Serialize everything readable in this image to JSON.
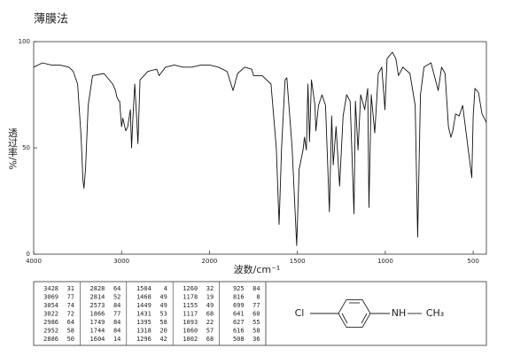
{
  "chart_data": {
    "type": "line",
    "title": "薄膜法",
    "ylabel": "透过率/%",
    "xlabel": "波数/cm⁻¹",
    "xlim": [
      4000,
      425
    ],
    "xscale_break": 2000,
    "xscale_ratio": 2,
    "xticks": [
      4000,
      3000,
      2000,
      1500,
      1000,
      500
    ],
    "ylim": [
      0,
      100
    ],
    "yticks": [
      0,
      50,
      100
    ],
    "x": [
      4000,
      3900,
      3800,
      3700,
      3600,
      3550,
      3500,
      3460,
      3440,
      3428,
      3410,
      3380,
      3330,
      3200,
      3100,
      3069,
      3054,
      3030,
      3022,
      3000,
      2986,
      2952,
      2930,
      2900,
      2886,
      2870,
      2850,
      2828,
      2814,
      2790,
      2700,
      2600,
      2573,
      2500,
      2400,
      2300,
      2200,
      2100,
      2000,
      1950,
      1900,
      1866,
      1840,
      1800,
      1760,
      1749,
      1700,
      1650,
      1620,
      1604,
      1590,
      1570,
      1560,
      1530,
      1504,
      1490,
      1468,
      1460,
      1449,
      1440,
      1431,
      1420,
      1400,
      1395,
      1380,
      1360,
      1340,
      1318,
      1305,
      1296,
      1280,
      1260,
      1240,
      1220,
      1200,
      1178,
      1170,
      1155,
      1140,
      1117,
      1100,
      1093,
      1080,
      1060,
      1040,
      1020,
      1002,
      990,
      960,
      940,
      925,
      900,
      860,
      830,
      816,
      800,
      780,
      740,
      699,
      680,
      660,
      641,
      627,
      616,
      600,
      580,
      560,
      508,
      500,
      490,
      470,
      450,
      425
    ],
    "series": [
      {
        "name": "spectrum",
        "color": "#111111",
        "values": [
          88,
          90,
          89,
          89,
          88,
          86,
          80,
          55,
          35,
          31,
          40,
          70,
          84,
          85,
          80,
          77,
          74,
          72,
          72,
          60,
          64,
          58,
          60,
          68,
          50,
          65,
          80,
          64,
          52,
          82,
          86,
          87,
          84,
          88,
          89,
          88,
          88,
          89,
          89,
          88,
          86,
          77,
          85,
          88,
          87,
          84,
          84,
          80,
          50,
          14,
          50,
          82,
          83,
          50,
          4,
          40,
          49,
          55,
          49,
          80,
          53,
          82,
          70,
          58,
          70,
          75,
          70,
          20,
          65,
          42,
          60,
          32,
          65,
          75,
          72,
          19,
          72,
          49,
          75,
          68,
          78,
          22,
          75,
          57,
          85,
          88,
          68,
          92,
          95,
          92,
          84,
          88,
          85,
          70,
          8,
          75,
          88,
          90,
          77,
          88,
          85,
          60,
          55,
          58,
          66,
          65,
          70,
          36,
          65,
          78,
          76,
          66,
          62
        ]
      }
    ]
  },
  "peak_table": {
    "columns": [
      [
        [
          3428,
          31
        ],
        [
          3069,
          77
        ],
        [
          3054,
          74
        ],
        [
          3022,
          72
        ],
        [
          2986,
          64
        ],
        [
          2952,
          58
        ],
        [
          2886,
          50
        ]
      ],
      [
        [
          2828,
          64
        ],
        [
          2814,
          52
        ],
        [
          2573,
          84
        ],
        [
          1866,
          77
        ],
        [
          1749,
          84
        ],
        [
          1744,
          84
        ],
        [
          1604,
          14
        ]
      ],
      [
        [
          1504,
          4
        ],
        [
          1468,
          49
        ],
        [
          1449,
          49
        ],
        [
          1431,
          53
        ],
        [
          1395,
          58
        ],
        [
          1318,
          20
        ],
        [
          1296,
          42
        ]
      ],
      [
        [
          1260,
          32
        ],
        [
          1178,
          19
        ],
        [
          1155,
          49
        ],
        [
          1117,
          68
        ],
        [
          1093,
          22
        ],
        [
          1060,
          57
        ],
        [
          1002,
          68
        ]
      ],
      [
        [
          925,
          84
        ],
        [
          816,
          8
        ],
        [
          699,
          77
        ],
        [
          641,
          60
        ],
        [
          627,
          55
        ],
        [
          616,
          58
        ],
        [
          508,
          36
        ]
      ]
    ]
  },
  "structure": {
    "labels": [
      "Cl",
      "NH",
      "CH₃"
    ]
  }
}
